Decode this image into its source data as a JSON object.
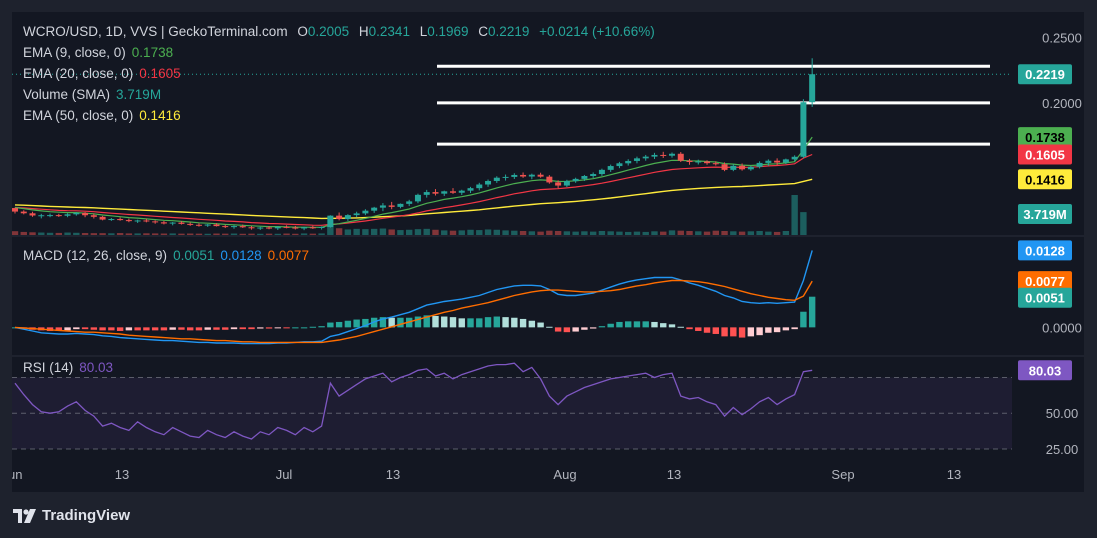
{
  "header": {
    "symbol_line": "WCRO/USD, 1D, VVS | GeckoTerminal.com",
    "open_label": "O",
    "open": "0.2005",
    "high_label": "H",
    "high": "0.2341",
    "low_label": "L",
    "low": "0.1969",
    "close_label": "C",
    "close": "0.2219",
    "change": "+0.0214 (+10.66%)"
  },
  "indicators": {
    "ema9": {
      "label": "EMA (9, close, 0)",
      "value": "0.1738",
      "color": "#4caf50"
    },
    "ema20": {
      "label": "EMA (20, close, 0)",
      "value": "0.1605",
      "color": "#f23645"
    },
    "volume": {
      "label": "Volume (SMA)",
      "value": "3.719M",
      "color": "#26a69a"
    },
    "ema50": {
      "label": "EMA (50, close, 0)",
      "value": "0.1416",
      "color": "#ffeb3b"
    },
    "macd": {
      "label": "MACD (12, 26, close, 9)",
      "hist": "0.0051",
      "macd": "0.0128",
      "signal": "0.0077",
      "hist_color": "#26a69a",
      "macd_color": "#2196f3",
      "signal_color": "#ff6d00"
    },
    "rsi": {
      "label": "RSI (14)",
      "value": "80.03",
      "color": "#7e57c2"
    }
  },
  "brand": {
    "name": "TradingView"
  },
  "chart_data": {
    "type": "candlestick",
    "price_axis": {
      "ticks": [
        0.25,
        0.2,
        0.15,
        0.1
      ],
      "tick_labels": [
        "0.2500",
        "0.2000",
        "",
        ""
      ]
    },
    "price_badges": [
      {
        "name": "close",
        "value": 0.2219,
        "label": "0.2219",
        "color": "#26a69a"
      },
      {
        "name": "ema9",
        "value": 0.1738,
        "label": "0.1738",
        "color": "#4caf50"
      },
      {
        "name": "ema20",
        "value": 0.1605,
        "label": "0.1605",
        "color": "#f23645"
      },
      {
        "name": "ema50",
        "value": 0.1416,
        "label": "0.1416",
        "color": "#ffeb3b"
      },
      {
        "name": "volume",
        "label": "3.719M",
        "color": "#26a69a"
      }
    ],
    "horizontal_levels": [
      0.228,
      0.2,
      0.1685
    ],
    "date_axis": {
      "labels": [
        "Jun",
        "13",
        "Jul",
        "13",
        "Aug",
        "13",
        "Sep",
        "13"
      ]
    },
    "candles": [
      [
        0.1196,
        0.1199,
        0.1154,
        0.1169
      ],
      [
        0.1169,
        0.1179,
        0.1148,
        0.1156
      ],
      [
        0.1156,
        0.1168,
        0.1129,
        0.1139
      ],
      [
        0.1139,
        0.1152,
        0.1117,
        0.1141
      ],
      [
        0.1141,
        0.1154,
        0.1126,
        0.1142
      ],
      [
        0.1142,
        0.1152,
        0.1128,
        0.1137
      ],
      [
        0.1137,
        0.1156,
        0.1126,
        0.1148
      ],
      [
        0.1148,
        0.1164,
        0.1138,
        0.1159
      ],
      [
        0.1159,
        0.1165,
        0.1126,
        0.1141
      ],
      [
        0.1141,
        0.1154,
        0.1116,
        0.1129
      ],
      [
        0.1129,
        0.1136,
        0.1102,
        0.1108
      ],
      [
        0.1108,
        0.112,
        0.1098,
        0.1112
      ],
      [
        0.1112,
        0.1124,
        0.1099,
        0.1104
      ],
      [
        0.1104,
        0.1115,
        0.1088,
        0.1096
      ],
      [
        0.1096,
        0.1107,
        0.1082,
        0.1101
      ],
      [
        0.1101,
        0.1114,
        0.1087,
        0.1094
      ],
      [
        0.1094,
        0.1102,
        0.1076,
        0.1087
      ],
      [
        0.1087,
        0.1097,
        0.1071,
        0.1078
      ],
      [
        0.1078,
        0.1089,
        0.1064,
        0.1085
      ],
      [
        0.1085,
        0.1096,
        0.107,
        0.1075
      ],
      [
        0.1075,
        0.1086,
        0.106,
        0.1068
      ],
      [
        0.1068,
        0.1079,
        0.1054,
        0.1062
      ],
      [
        0.1062,
        0.1074,
        0.1052,
        0.107
      ],
      [
        0.107,
        0.108,
        0.1055,
        0.1058
      ],
      [
        0.1058,
        0.1068,
        0.1043,
        0.1051
      ],
      [
        0.1051,
        0.1064,
        0.1038,
        0.1058
      ],
      [
        0.1058,
        0.107,
        0.1044,
        0.1049
      ],
      [
        0.1049,
        0.1059,
        0.1031,
        0.1042
      ],
      [
        0.1042,
        0.1053,
        0.1029,
        0.1047
      ],
      [
        0.1047,
        0.1058,
        0.1034,
        0.1041
      ],
      [
        0.1041,
        0.1056,
        0.1028,
        0.1052
      ],
      [
        0.1052,
        0.1064,
        0.1041,
        0.1047
      ],
      [
        0.1047,
        0.1059,
        0.1032,
        0.104
      ],
      [
        0.104,
        0.1053,
        0.1027,
        0.1049
      ],
      [
        0.1049,
        0.1061,
        0.1036,
        0.1044
      ],
      [
        0.1044,
        0.1056,
        0.1032,
        0.1051
      ],
      [
        0.1051,
        0.1141,
        0.1046,
        0.1138
      ],
      [
        0.1138,
        0.1162,
        0.1102,
        0.1112
      ],
      [
        0.1112,
        0.1149,
        0.1098,
        0.1142
      ],
      [
        0.1142,
        0.1168,
        0.1126,
        0.1155
      ],
      [
        0.1155,
        0.1187,
        0.1142,
        0.1176
      ],
      [
        0.1176,
        0.1205,
        0.1159,
        0.1199
      ],
      [
        0.1199,
        0.1234,
        0.1172,
        0.1216
      ],
      [
        0.1216,
        0.1243,
        0.1187,
        0.1205
      ],
      [
        0.1205,
        0.1231,
        0.1194,
        0.1228
      ],
      [
        0.1228,
        0.1259,
        0.1211,
        0.1247
      ],
      [
        0.1247,
        0.1306,
        0.1233,
        0.1297
      ],
      [
        0.1297,
        0.1335,
        0.1276,
        0.1318
      ],
      [
        0.1318,
        0.1341,
        0.1292,
        0.1306
      ],
      [
        0.1306,
        0.1329,
        0.1288,
        0.1324
      ],
      [
        0.1324,
        0.1348,
        0.1304,
        0.1313
      ],
      [
        0.1313,
        0.1336,
        0.1296,
        0.1329
      ],
      [
        0.1329,
        0.1358,
        0.1311,
        0.1348
      ],
      [
        0.1348,
        0.1389,
        0.1331,
        0.1376
      ],
      [
        0.1376,
        0.1414,
        0.1358,
        0.1403
      ],
      [
        0.1403,
        0.1439,
        0.1388,
        0.1428
      ],
      [
        0.1428,
        0.1452,
        0.1406,
        0.1434
      ],
      [
        0.1434,
        0.1462,
        0.1418,
        0.1449
      ],
      [
        0.1449,
        0.1468,
        0.1427,
        0.1437
      ],
      [
        0.1437,
        0.1459,
        0.1416,
        0.1451
      ],
      [
        0.1451,
        0.1466,
        0.1428,
        0.1436
      ],
      [
        0.1436,
        0.1448,
        0.1382,
        0.1392
      ],
      [
        0.1392,
        0.1408,
        0.1347,
        0.1368
      ],
      [
        0.1368,
        0.1412,
        0.1357,
        0.1402
      ],
      [
        0.1402,
        0.1428,
        0.1389,
        0.1419
      ],
      [
        0.1419,
        0.1449,
        0.1403,
        0.1441
      ],
      [
        0.1441,
        0.1468,
        0.1426,
        0.1456
      ],
      [
        0.1456,
        0.1497,
        0.1442,
        0.1488
      ],
      [
        0.1488,
        0.1528,
        0.1472,
        0.1517
      ],
      [
        0.1517,
        0.1549,
        0.1501,
        0.1538
      ],
      [
        0.1538,
        0.1569,
        0.1521,
        0.1556
      ],
      [
        0.1556,
        0.1589,
        0.1538,
        0.1576
      ],
      [
        0.1576,
        0.1602,
        0.1558,
        0.1589
      ],
      [
        0.1589,
        0.1618,
        0.1571,
        0.1602
      ],
      [
        0.1602,
        0.1626,
        0.1579,
        0.1596
      ],
      [
        0.1596,
        0.1621,
        0.1581,
        0.1611
      ],
      [
        0.1611,
        0.1624,
        0.1548,
        0.1558
      ],
      [
        0.1558,
        0.1572,
        0.1527,
        0.1548
      ],
      [
        0.1548,
        0.1566,
        0.1529,
        0.1552
      ],
      [
        0.1552,
        0.1561,
        0.1527,
        0.1539
      ],
      [
        0.1539,
        0.1553,
        0.1521,
        0.1531
      ],
      [
        0.1531,
        0.1545,
        0.1478,
        0.1488
      ],
      [
        0.1488,
        0.1532,
        0.1478,
        0.1519
      ],
      [
        0.1519,
        0.1537,
        0.1482,
        0.1492
      ],
      [
        0.1492,
        0.1518,
        0.1481,
        0.1511
      ],
      [
        0.1511,
        0.1553,
        0.1499,
        0.1541
      ],
      [
        0.1541,
        0.1568,
        0.1519,
        0.1558
      ],
      [
        0.1558,
        0.1576,
        0.1524,
        0.1544
      ],
      [
        0.1544,
        0.1574,
        0.1532,
        0.1568
      ],
      [
        0.1568,
        0.1599,
        0.1553,
        0.1588
      ],
      [
        0.1588,
        0.2028,
        0.1577,
        0.2005
      ],
      [
        0.2005,
        0.2341,
        0.1969,
        0.2219
      ]
    ],
    "volume": [
      0.62,
      0.5,
      0.44,
      0.4,
      0.36,
      0.34,
      0.4,
      0.36,
      0.32,
      0.3,
      0.3,
      0.28,
      0.32,
      0.26,
      0.26,
      0.28,
      0.26,
      0.24,
      0.26,
      0.22,
      0.24,
      0.22,
      0.2,
      0.24,
      0.22,
      0.24,
      0.2,
      0.22,
      0.2,
      0.22,
      0.2,
      0.24,
      0.2,
      0.26,
      0.22,
      0.26,
      1.6,
      1.1,
      0.9,
      1.0,
      0.95,
      1.0,
      1.05,
      0.9,
      0.8,
      0.85,
      0.95,
      1.0,
      0.85,
      0.75,
      0.7,
      0.75,
      0.85,
      0.8,
      0.9,
      0.85,
      0.75,
      0.7,
      0.65,
      0.6,
      0.55,
      0.7,
      0.65,
      0.6,
      0.55,
      0.6,
      0.55,
      0.65,
      0.6,
      0.55,
      0.5,
      0.55,
      0.5,
      0.6,
      0.55,
      0.75,
      0.7,
      0.65,
      0.6,
      0.55,
      0.7,
      0.65,
      0.6,
      0.55,
      0.6,
      0.65,
      0.55,
      0.5,
      0.65,
      6.5,
      3.719
    ],
    "ema9": [
      0.12,
      0.1192,
      0.1182,
      0.1174,
      0.1168,
      0.1164,
      0.1161,
      0.1161,
      0.1157,
      0.1152,
      0.1143,
      0.1137,
      0.113,
      0.1123,
      0.1119,
      0.1113,
      0.1108,
      0.1102,
      0.1099,
      0.1094,
      0.1089,
      0.1083,
      0.108,
      0.1076,
      0.1071,
      0.1068,
      0.1064,
      0.106,
      0.1057,
      0.1054,
      0.1054,
      0.1052,
      0.105,
      0.105,
      0.1049,
      0.1049,
      0.1067,
      0.1076,
      0.1089,
      0.1102,
      0.1117,
      0.1133,
      0.115,
      0.1161,
      0.1174,
      0.1189,
      0.1211,
      0.1232,
      0.1247,
      0.1262,
      0.1272,
      0.1283,
      0.1296,
      0.1312,
      0.133,
      0.135,
      0.1367,
      0.1383,
      0.1394,
      0.1405,
      0.1411,
      0.1407,
      0.1399,
      0.14,
      0.1404,
      0.1411,
      0.142,
      0.1434,
      0.1451,
      0.1468,
      0.1486,
      0.1504,
      0.1521,
      0.1537,
      0.1549,
      0.1561,
      0.156,
      0.1557,
      0.1556,
      0.1552,
      0.1548,
      0.1536,
      0.1532,
      0.1524,
      0.1521,
      0.1525,
      0.1532,
      0.1534,
      0.1541,
      0.155,
      0.1641,
      0.1738
    ],
    "ema20": [
      0.12,
      0.1197,
      0.1192,
      0.1187,
      0.1183,
      0.1178,
      0.1176,
      0.1175,
      0.1172,
      0.1168,
      0.1162,
      0.1157,
      0.1152,
      0.1147,
      0.1143,
      0.1138,
      0.1133,
      0.1128,
      0.1124,
      0.112,
      0.1115,
      0.111,
      0.1106,
      0.1102,
      0.1097,
      0.1094,
      0.109,
      0.1085,
      0.1082,
      0.1078,
      0.1076,
      0.1073,
      0.107,
      0.1068,
      0.1065,
      0.1064,
      0.1071,
      0.1075,
      0.1082,
      0.1089,
      0.1097,
      0.1107,
      0.1118,
      0.1126,
      0.1135,
      0.1145,
      0.1159,
      0.1174,
      0.1186,
      0.1199,
      0.1209,
      0.122,
      0.1232,
      0.1245,
      0.126,
      0.1276,
      0.129,
      0.1305,
      0.1316,
      0.1328,
      0.1337,
      0.1341,
      0.1344,
      0.135,
      0.1357,
      0.1366,
      0.1375,
      0.1386,
      0.1399,
      0.1413,
      0.1427,
      0.1441,
      0.1455,
      0.1469,
      0.148,
      0.1491,
      0.1496,
      0.15,
      0.1504,
      0.1507,
      0.1509,
      0.1507,
      0.1508,
      0.1507,
      0.1508,
      0.1512,
      0.1518,
      0.1521,
      0.1527,
      0.1534,
      0.1578,
      0.1605
    ],
    "ema50": [
      0.122,
      0.1218,
      0.1215,
      0.1212,
      0.1209,
      0.1206,
      0.1204,
      0.1202,
      0.12,
      0.1198,
      0.1194,
      0.1191,
      0.1188,
      0.1185,
      0.1182,
      0.1179,
      0.1176,
      0.1172,
      0.1169,
      0.1166,
      0.1163,
      0.116,
      0.1156,
      0.1153,
      0.115,
      0.1147,
      0.1144,
      0.114,
      0.1137,
      0.1134,
      0.1131,
      0.1128,
      0.1125,
      0.1123,
      0.112,
      0.1117,
      0.1118,
      0.1118,
      0.1119,
      0.1121,
      0.1123,
      0.1126,
      0.113,
      0.1133,
      0.1136,
      0.114,
      0.1146,
      0.1152,
      0.1157,
      0.1162,
      0.1167,
      0.1172,
      0.1177,
      0.1183,
      0.119,
      0.1197,
      0.1204,
      0.1211,
      0.1217,
      0.1223,
      0.1229,
      0.1233,
      0.1237,
      0.1242,
      0.1247,
      0.1253,
      0.1259,
      0.1266,
      0.1273,
      0.1281,
      0.129,
      0.1298,
      0.1306,
      0.1315,
      0.1323,
      0.1331,
      0.1336,
      0.1341,
      0.1346,
      0.135,
      0.1354,
      0.1356,
      0.1359,
      0.1361,
      0.1364,
      0.1368,
      0.1372,
      0.1375,
      0.1379,
      0.1383,
      0.14,
      0.1416
    ],
    "macd_axis": {
      "ticks": [
        0.0
      ],
      "tick_labels": [
        "0.0000"
      ]
    },
    "macd_line": [
      0.0,
      -0.0003,
      -0.0006,
      -0.0009,
      -0.001,
      -0.0011,
      -0.0011,
      -0.001,
      -0.0011,
      -0.0012,
      -0.0014,
      -0.0015,
      -0.0017,
      -0.0018,
      -0.0019,
      -0.002,
      -0.0021,
      -0.0022,
      -0.0022,
      -0.0023,
      -0.0024,
      -0.0025,
      -0.0025,
      -0.0026,
      -0.0026,
      -0.0026,
      -0.0027,
      -0.0027,
      -0.0027,
      -0.0027,
      -0.0026,
      -0.0026,
      -0.0025,
      -0.0024,
      -0.0024,
      -0.0023,
      -0.0015,
      -0.0012,
      -0.0007,
      -0.0002,
      0.0003,
      0.0009,
      0.0014,
      0.0017,
      0.0021,
      0.0025,
      0.0031,
      0.0037,
      0.004,
      0.0043,
      0.0045,
      0.0047,
      0.005,
      0.0053,
      0.0058,
      0.0063,
      0.0066,
      0.0069,
      0.007,
      0.007,
      0.0069,
      0.0063,
      0.0055,
      0.0053,
      0.0053,
      0.0055,
      0.0057,
      0.0062,
      0.0067,
      0.0072,
      0.0076,
      0.0079,
      0.0081,
      0.0083,
      0.0083,
      0.0083,
      0.0079,
      0.0074,
      0.007,
      0.0065,
      0.006,
      0.0053,
      0.0049,
      0.0043,
      0.0041,
      0.004,
      0.0041,
      0.004,
      0.0041,
      0.0042,
      0.0078,
      0.0128
    ],
    "signal_line": [
      0.0,
      -0.0001,
      -0.0002,
      -0.0003,
      -0.0004,
      -0.0005,
      -0.0006,
      -0.0007,
      -0.0008,
      -0.0008,
      -0.0009,
      -0.001,
      -0.0011,
      -0.0013,
      -0.0014,
      -0.0015,
      -0.0016,
      -0.0017,
      -0.0018,
      -0.0019,
      -0.0019,
      -0.002,
      -0.0021,
      -0.0022,
      -0.0022,
      -0.0023,
      -0.0024,
      -0.0024,
      -0.0025,
      -0.0025,
      -0.0025,
      -0.0025,
      -0.0025,
      -0.0025,
      -0.0025,
      -0.0025,
      -0.0023,
      -0.0021,
      -0.0018,
      -0.0015,
      -0.0011,
      -0.0007,
      -0.0003,
      0.0001,
      0.0005,
      0.0009,
      0.0013,
      0.0017,
      0.0021,
      0.0025,
      0.0028,
      0.0032,
      0.0035,
      0.0038,
      0.0041,
      0.0045,
      0.0049,
      0.0053,
      0.0056,
      0.0059,
      0.0061,
      0.0062,
      0.0062,
      0.0061,
      0.006,
      0.0059,
      0.0059,
      0.006,
      0.0061,
      0.0063,
      0.0066,
      0.0069,
      0.0071,
      0.0074,
      0.0076,
      0.0078,
      0.0078,
      0.0077,
      0.0076,
      0.0074,
      0.0071,
      0.0068,
      0.0064,
      0.006,
      0.0056,
      0.0053,
      0.005,
      0.0048,
      0.0046,
      0.0045,
      0.0052,
      0.0077
    ],
    "macd_hist": [
      0.0,
      -0.0002,
      -0.0004,
      -0.0005,
      -0.0006,
      -0.0006,
      -0.0005,
      -0.0003,
      -0.0003,
      -0.0004,
      -0.0005,
      -0.0005,
      -0.0006,
      -0.0005,
      -0.0005,
      -0.0005,
      -0.0005,
      -0.0005,
      -0.0004,
      -0.0004,
      -0.0005,
      -0.0005,
      -0.0004,
      -0.0004,
      -0.0004,
      -0.0003,
      -0.0003,
      -0.0003,
      -0.0002,
      -0.0002,
      -0.0001,
      -0.0001,
      0.0,
      0.0,
      0.0001,
      0.0002,
      0.0008,
      0.0009,
      0.0011,
      0.0013,
      0.0014,
      0.0016,
      0.0017,
      0.0016,
      0.0016,
      0.0016,
      0.0018,
      0.002,
      0.0019,
      0.0018,
      0.0017,
      0.0015,
      0.0015,
      0.0015,
      0.0017,
      0.0018,
      0.0017,
      0.0016,
      0.0014,
      0.0011,
      0.0008,
      0.0001,
      -0.0007,
      -0.0008,
      -0.0007,
      -0.0004,
      -0.0002,
      0.0002,
      0.0006,
      0.0009,
      0.001,
      0.001,
      0.001,
      0.0009,
      0.0007,
      0.0005,
      0.0001,
      -0.0003,
      -0.0006,
      -0.0009,
      -0.0011,
      -0.0015,
      -0.0015,
      -0.0017,
      -0.0015,
      -0.0013,
      -0.0009,
      -0.0008,
      -0.0005,
      -0.0003,
      0.0026,
      0.0051
    ],
    "rsi_axis": {
      "ticks": [
        75,
        50,
        25
      ],
      "tick_labels": [
        "",
        "50.00",
        "25.00"
      ],
      "range": [
        18,
        90
      ]
    },
    "rsi": [
      71,
      63,
      56,
      51,
      50,
      51,
      55,
      58,
      52,
      48,
      41,
      43,
      40,
      38,
      44,
      40,
      37,
      35,
      40,
      37,
      34,
      33,
      38,
      35,
      33,
      37,
      34,
      32,
      37,
      35,
      40,
      38,
      35,
      40,
      37,
      41,
      71,
      62,
      66,
      70,
      74,
      76,
      78,
      72,
      75,
      77,
      80,
      81,
      76,
      78,
      74,
      77,
      79,
      81,
      83,
      84,
      84,
      85,
      79,
      82,
      74,
      62,
      56,
      62,
      65,
      68,
      70,
      72,
      74,
      75,
      76,
      77,
      78,
      75,
      77,
      78,
      62,
      60,
      61,
      58,
      56,
      48,
      54,
      49,
      53,
      58,
      61,
      56,
      60,
      63,
      79,
      80.03
    ]
  }
}
